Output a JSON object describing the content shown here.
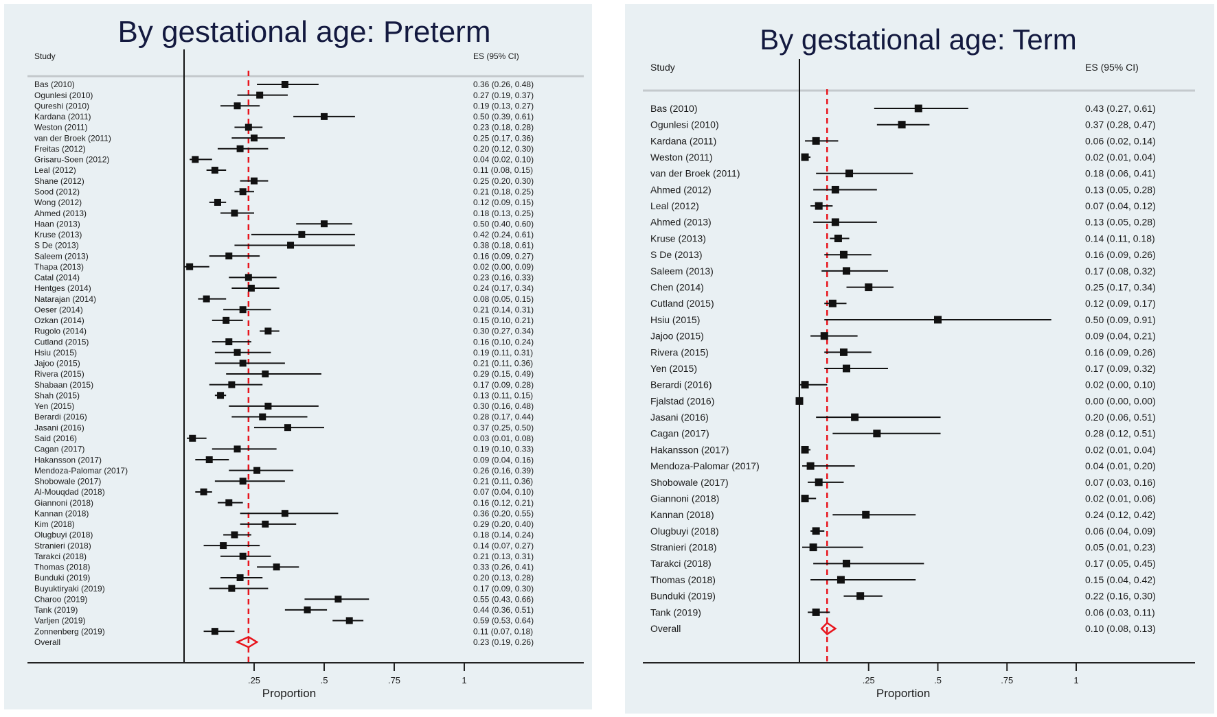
{
  "chart_data": [
    {
      "type": "forest",
      "title": "By gestational age: Preterm",
      "col_study": "Study",
      "col_es": "ES (95% CI)",
      "xlabel": "Proportion",
      "xticks": [
        ".25",
        ".5",
        ".75",
        "1"
      ],
      "xtick_values": [
        0.25,
        0.5,
        0.75,
        1
      ],
      "xlim": [
        0,
        1.25
      ],
      "reference_line": 0.23,
      "reference_color": "#e8141c",
      "rows": [
        [
          "Bas (2010)",
          0.36,
          0.26,
          0.48,
          "0.36 (0.26, 0.48)"
        ],
        [
          "Ogunlesi (2010)",
          0.27,
          0.19,
          0.37,
          "0.27 (0.19, 0.37)"
        ],
        [
          "Qureshi (2010)",
          0.19,
          0.13,
          0.27,
          "0.19 (0.13, 0.27)"
        ],
        [
          "Kardana (2011)",
          0.5,
          0.39,
          0.61,
          "0.50 (0.39, 0.61)"
        ],
        [
          "Weston (2011)",
          0.23,
          0.18,
          0.28,
          "0.23 (0.18, 0.28)"
        ],
        [
          "van der Broek (2011)",
          0.25,
          0.17,
          0.36,
          "0.25 (0.17, 0.36)"
        ],
        [
          "Freitas (2012)",
          0.2,
          0.12,
          0.3,
          "0.20 (0.12, 0.30)"
        ],
        [
          "Grisaru-Soen (2012)",
          0.04,
          0.02,
          0.1,
          "0.04 (0.02, 0.10)"
        ],
        [
          "Leal (2012)",
          0.11,
          0.08,
          0.15,
          "0.11 (0.08, 0.15)"
        ],
        [
          "Shane (2012)",
          0.25,
          0.2,
          0.3,
          "0.25 (0.20, 0.30)"
        ],
        [
          "Sood (2012)",
          0.21,
          0.18,
          0.25,
          "0.21 (0.18, 0.25)"
        ],
        [
          "Wong (2012)",
          0.12,
          0.09,
          0.15,
          "0.12 (0.09, 0.15)"
        ],
        [
          "Ahmed (2013)",
          0.18,
          0.13,
          0.25,
          "0.18 (0.13, 0.25)"
        ],
        [
          "Haan (2013)",
          0.5,
          0.4,
          0.6,
          "0.50 (0.40, 0.60)"
        ],
        [
          "Kruse  (2013)",
          0.42,
          0.24,
          0.61,
          "0.42 (0.24, 0.61)"
        ],
        [
          "S De (2013)",
          0.38,
          0.18,
          0.61,
          "0.38 (0.18, 0.61)"
        ],
        [
          "Saleem (2013)",
          0.16,
          0.09,
          0.27,
          "0.16 (0.09, 0.27)"
        ],
        [
          "Thapa (2013)",
          0.02,
          0.0,
          0.09,
          "0.02 (0.00, 0.09)"
        ],
        [
          "Catal (2014)",
          0.23,
          0.16,
          0.33,
          "0.23 (0.16, 0.33)"
        ],
        [
          "Hentges (2014)",
          0.24,
          0.17,
          0.34,
          "0.24 (0.17, 0.34)"
        ],
        [
          "Natarajan (2014)",
          0.08,
          0.05,
          0.15,
          "0.08 (0.05, 0.15)"
        ],
        [
          "Oeser (2014)",
          0.21,
          0.14,
          0.31,
          "0.21 (0.14, 0.31)"
        ],
        [
          "Ozkan (2014)",
          0.15,
          0.1,
          0.21,
          "0.15 (0.10, 0.21)"
        ],
        [
          "Rugolo (2014)",
          0.3,
          0.27,
          0.34,
          "0.30 (0.27, 0.34)"
        ],
        [
          "Cutland (2015)",
          0.16,
          0.1,
          0.24,
          "0.16 (0.10, 0.24)"
        ],
        [
          "Hsiu (2015)",
          0.19,
          0.11,
          0.31,
          "0.19 (0.11, 0.31)"
        ],
        [
          "Jajoo (2015)",
          0.21,
          0.11,
          0.36,
          "0.21 (0.11, 0.36)"
        ],
        [
          "Rivera (2015)",
          0.29,
          0.15,
          0.49,
          "0.29 (0.15, 0.49)"
        ],
        [
          "Shabaan (2015)",
          0.17,
          0.09,
          0.28,
          "0.17 (0.09, 0.28)"
        ],
        [
          "Shah (2015)",
          0.13,
          0.11,
          0.15,
          "0.13 (0.11, 0.15)"
        ],
        [
          "Yen (2015)",
          0.3,
          0.16,
          0.48,
          "0.30 (0.16, 0.48)"
        ],
        [
          "Berardi (2016)",
          0.28,
          0.17,
          0.44,
          "0.28 (0.17, 0.44)"
        ],
        [
          "Jasani (2016)",
          0.37,
          0.25,
          0.5,
          "0.37 (0.25, 0.50)"
        ],
        [
          "Said (2016)",
          0.03,
          0.01,
          0.08,
          "0.03 (0.01, 0.08)"
        ],
        [
          "Cagan (2017)",
          0.19,
          0.1,
          0.33,
          "0.19 (0.10, 0.33)"
        ],
        [
          "Hakansson (2017)",
          0.09,
          0.04,
          0.16,
          "0.09 (0.04, 0.16)"
        ],
        [
          "Mendoza-Palomar (2017)",
          0.26,
          0.16,
          0.39,
          "0.26 (0.16, 0.39)"
        ],
        [
          "Shobowale (2017)",
          0.21,
          0.11,
          0.36,
          "0.21 (0.11, 0.36)"
        ],
        [
          "Al-Mouqdad (2018)",
          0.07,
          0.04,
          0.1,
          "0.07 (0.04, 0.10)"
        ],
        [
          "Giannoni (2018)",
          0.16,
          0.12,
          0.21,
          "0.16 (0.12, 0.21)"
        ],
        [
          "Kannan (2018)",
          0.36,
          0.2,
          0.55,
          "0.36 (0.20, 0.55)"
        ],
        [
          "Kim (2018)",
          0.29,
          0.2,
          0.4,
          "0.29 (0.20, 0.40)"
        ],
        [
          "Olugbuyi (2018)",
          0.18,
          0.14,
          0.24,
          "0.18 (0.14, 0.24)"
        ],
        [
          "Stranieri (2018)",
          0.14,
          0.07,
          0.27,
          "0.14 (0.07, 0.27)"
        ],
        [
          "Tarakci (2018)",
          0.21,
          0.13,
          0.31,
          "0.21 (0.13, 0.31)"
        ],
        [
          "Thomas (2018)",
          0.33,
          0.26,
          0.41,
          "0.33 (0.26, 0.41)"
        ],
        [
          "Bunduki (2019)",
          0.2,
          0.13,
          0.28,
          "0.20 (0.13, 0.28)"
        ],
        [
          "Buyuktiryaki (2019)",
          0.17,
          0.09,
          0.3,
          "0.17 (0.09, 0.30)"
        ],
        [
          "Charoo (2019)",
          0.55,
          0.43,
          0.66,
          "0.55 (0.43, 0.66)"
        ],
        [
          "Tank (2019)",
          0.44,
          0.36,
          0.51,
          "0.44 (0.36, 0.51)"
        ],
        [
          "Varljen (2019)",
          0.59,
          0.53,
          0.64,
          "0.59 (0.53, 0.64)"
        ],
        [
          "Zonnenberg (2019)",
          0.11,
          0.07,
          0.18,
          "0.11 (0.07, 0.18)"
        ]
      ],
      "overall": [
        "Overall",
        0.23,
        0.19,
        0.26,
        "0.23 (0.19, 0.26)"
      ]
    },
    {
      "type": "forest",
      "title": "By gestational age: Term",
      "col_study": "Study",
      "col_es": "ES (95% CI)",
      "xlabel": "Proportion",
      "xticks": [
        ".25",
        ".5",
        ".75",
        "1"
      ],
      "xtick_values": [
        0.25,
        0.5,
        0.75,
        1
      ],
      "xlim": [
        0,
        1.25
      ],
      "reference_line": 0.1,
      "reference_color": "#e8141c",
      "rows": [
        [
          "Bas (2010)",
          0.43,
          0.27,
          0.61,
          "0.43 (0.27, 0.61)"
        ],
        [
          "Ogunlesi (2010)",
          0.37,
          0.28,
          0.47,
          "0.37 (0.28, 0.47)"
        ],
        [
          "Kardana (2011)",
          0.06,
          0.02,
          0.14,
          "0.06 (0.02, 0.14)"
        ],
        [
          "Weston (2011)",
          0.02,
          0.01,
          0.04,
          "0.02 (0.01, 0.04)"
        ],
        [
          "van der Broek (2011)",
          0.18,
          0.06,
          0.41,
          "0.18 (0.06, 0.41)"
        ],
        [
          "Ahmed (2012)",
          0.13,
          0.05,
          0.28,
          "0.13 (0.05, 0.28)"
        ],
        [
          "Leal (2012)",
          0.07,
          0.04,
          0.12,
          "0.07 (0.04, 0.12)"
        ],
        [
          "Ahmed (2013)",
          0.13,
          0.05,
          0.28,
          "0.13 (0.05, 0.28)"
        ],
        [
          "Kruse  (2013)",
          0.14,
          0.11,
          0.18,
          "0.14 (0.11, 0.18)"
        ],
        [
          "S De (2013)",
          0.16,
          0.09,
          0.26,
          "0.16 (0.09, 0.26)"
        ],
        [
          "Saleem (2013)",
          0.17,
          0.08,
          0.32,
          "0.17 (0.08, 0.32)"
        ],
        [
          "Chen (2014)",
          0.25,
          0.17,
          0.34,
          "0.25 (0.17, 0.34)"
        ],
        [
          "Cutland (2015)",
          0.12,
          0.09,
          0.17,
          "0.12 (0.09, 0.17)"
        ],
        [
          "Hsiu (2015)",
          0.5,
          0.09,
          0.91,
          "0.50 (0.09, 0.91)"
        ],
        [
          "Jajoo (2015)",
          0.09,
          0.04,
          0.21,
          "0.09 (0.04, 0.21)"
        ],
        [
          "Rivera (2015)",
          0.16,
          0.09,
          0.26,
          "0.16 (0.09, 0.26)"
        ],
        [
          "Yen (2015)",
          0.17,
          0.09,
          0.32,
          "0.17 (0.09, 0.32)"
        ],
        [
          "Berardi (2016)",
          0.02,
          0.0,
          0.1,
          "0.02 (0.00, 0.10)"
        ],
        [
          "Fjalstad (2016)",
          0.0,
          0.0,
          0.0,
          "0.00 (0.00, 0.00)"
        ],
        [
          "Jasani (2016)",
          0.2,
          0.06,
          0.51,
          "0.20 (0.06, 0.51)"
        ],
        [
          "Cagan (2017)",
          0.28,
          0.12,
          0.51,
          "0.28 (0.12, 0.51)"
        ],
        [
          "Hakansson (2017)",
          0.02,
          0.01,
          0.04,
          "0.02 (0.01, 0.04)"
        ],
        [
          "Mendoza-Palomar (2017)",
          0.04,
          0.01,
          0.2,
          "0.04 (0.01, 0.20)"
        ],
        [
          "Shobowale (2017)",
          0.07,
          0.03,
          0.16,
          "0.07 (0.03, 0.16)"
        ],
        [
          "Giannoni (2018)",
          0.02,
          0.01,
          0.06,
          "0.02 (0.01, 0.06)"
        ],
        [
          "Kannan (2018)",
          0.24,
          0.12,
          0.42,
          "0.24 (0.12, 0.42)"
        ],
        [
          "Olugbuyi (2018)",
          0.06,
          0.04,
          0.09,
          "0.06 (0.04, 0.09)"
        ],
        [
          "Stranieri (2018)",
          0.05,
          0.01,
          0.23,
          "0.05 (0.01, 0.23)"
        ],
        [
          "Tarakci (2018)",
          0.17,
          0.05,
          0.45,
          "0.17 (0.05, 0.45)"
        ],
        [
          "Thomas (2018)",
          0.15,
          0.04,
          0.42,
          "0.15 (0.04, 0.42)"
        ],
        [
          "Bunduki (2019)",
          0.22,
          0.16,
          0.3,
          "0.22 (0.16, 0.30)"
        ],
        [
          "Tank (2019)",
          0.06,
          0.03,
          0.11,
          "0.06 (0.03, 0.11)"
        ]
      ],
      "overall": [
        "Overall",
        0.1,
        0.08,
        0.13,
        "0.10 (0.08, 0.13)"
      ]
    }
  ]
}
